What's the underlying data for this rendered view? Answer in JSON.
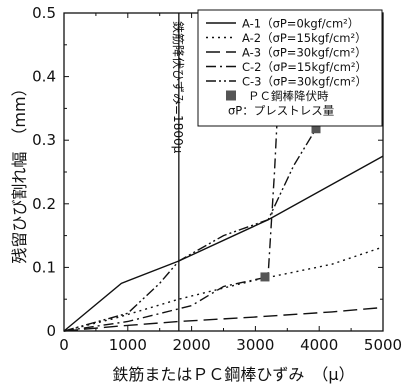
{
  "chart_data": {
    "type": "line",
    "xlabel": "鉄筋またはＰＣ鋼棒ひずみ　（μ）",
    "ylabel": "残留ひび割れ幅　（mm）",
    "xlim": [
      0,
      5000
    ],
    "ylim": [
      0,
      0.5
    ],
    "x_ticks": [
      "0",
      "1000",
      "2000",
      "3000",
      "4000",
      "5000"
    ],
    "y_ticks": [
      "0",
      "0.1",
      "0.2",
      "0.3",
      "0.4",
      "0.5"
    ],
    "grid": false,
    "legend_position": "top-right",
    "series": [
      {
        "name": "A-1",
        "legend_label": "A-1（σP=0kgf/cm²）",
        "dash": "",
        "color": "#111111",
        "points": [
          [
            0,
            0
          ],
          [
            900,
            0.075
          ],
          [
            1800,
            0.11
          ],
          [
            3200,
            0.175
          ],
          [
            5000,
            0.275
          ]
        ]
      },
      {
        "name": "A-2",
        "legend_label": "A-2（σP=15kgf/cm²）",
        "dash": "2 4",
        "color": "#111111",
        "points": [
          [
            0,
            0
          ],
          [
            800,
            0.02
          ],
          [
            1800,
            0.05
          ],
          [
            3000,
            0.08
          ],
          [
            4200,
            0.105
          ],
          [
            5000,
            0.132
          ]
        ]
      },
      {
        "name": "A-3",
        "legend_label": "A-3（σP=30kgf/cm²）",
        "dash": "14 6",
        "color": "#111111",
        "points": [
          [
            0,
            0
          ],
          [
            900,
            0.008
          ],
          [
            1800,
            0.015
          ],
          [
            3000,
            0.022
          ],
          [
            4200,
            0.03
          ],
          [
            5000,
            0.037
          ]
        ]
      },
      {
        "name": "C-2",
        "legend_label": "C-2（σP=15kgf/cm²）",
        "dash": "10 4 2 4",
        "color": "#111111",
        "points": [
          [
            0,
            0
          ],
          [
            1000,
            0.015
          ],
          [
            2000,
            0.04
          ],
          [
            2500,
            0.07
          ],
          [
            3100,
            0.083
          ],
          [
            3200,
            0.09
          ],
          [
            3300,
            0.25
          ],
          [
            3400,
            0.45
          ],
          [
            3450,
            0.5
          ]
        ]
      },
      {
        "name": "C-3",
        "legend_label": "C-3（σP=30kgf/cm²）",
        "dash": "10 3 2 3 2 3",
        "color": "#111111",
        "points": [
          [
            0,
            0
          ],
          [
            1000,
            0.028
          ],
          [
            1500,
            0.075
          ],
          [
            1800,
            0.11
          ],
          [
            2500,
            0.15
          ],
          [
            3200,
            0.175
          ],
          [
            3600,
            0.26
          ],
          [
            3950,
            0.318
          ]
        ]
      }
    ],
    "markers": {
      "name": "ＰＣ鋼棒降伏時",
      "color": "#555555",
      "points": [
        [
          3150,
          0.085
        ],
        [
          3950,
          0.318
        ]
      ]
    },
    "legend_note": "σP：プレストレス量",
    "vertical_line": {
      "x": 1800,
      "label": "鉄筋降伏ひずみ=1800μ"
    }
  }
}
